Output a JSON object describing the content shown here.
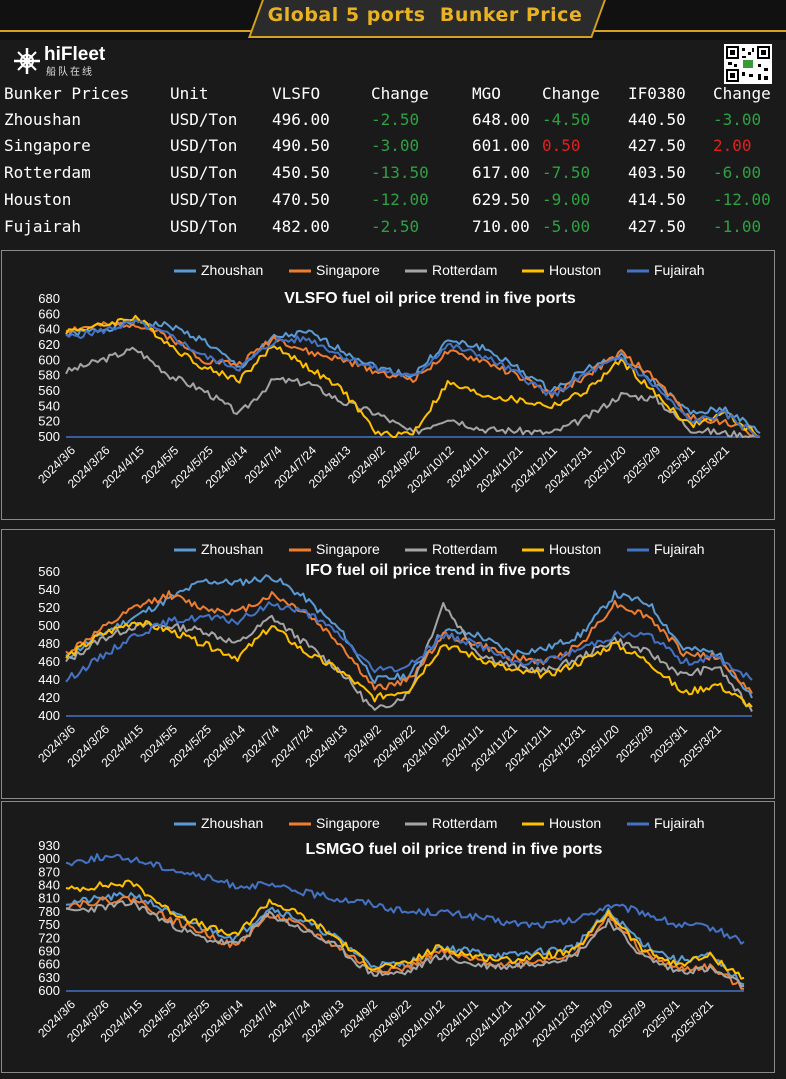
{
  "header": {
    "title": "Global 5 ports  Bunker Price"
  },
  "logo": {
    "brand": "hiFleet",
    "sub": "船队在线"
  },
  "table": {
    "headers": [
      "Bunker Prices",
      "Unit",
      "VLSFO",
      "Change",
      "MGO",
      "Change",
      "IF0380",
      "Change"
    ],
    "rows": [
      [
        "Zhoushan",
        "USD/Ton",
        "496.00",
        "-2.50",
        "648.00",
        "-4.50",
        "440.50",
        "-3.00"
      ],
      [
        "Singapore",
        "USD/Ton",
        "490.50",
        "-3.00",
        "601.00",
        "0.50",
        "427.50",
        "2.00"
      ],
      [
        "Rotterdam",
        "USD/Ton",
        "450.50",
        "-13.50",
        "617.00",
        "-7.50",
        "403.50",
        "-6.00"
      ],
      [
        "Houston",
        "USD/Ton",
        "470.50",
        "-12.00",
        "629.50",
        "-9.00",
        "414.50",
        "-12.00"
      ],
      [
        "Fujairah",
        "USD/Ton",
        "482.00",
        "-2.50",
        "710.00",
        "-5.00",
        "427.50",
        "-1.00"
      ]
    ],
    "colors": {
      "negative": "#2ea043",
      "positive": "#e02020",
      "text": "#ffffff"
    }
  },
  "chart_data": [
    {
      "type": "line",
      "title": "VLSFO fuel oil price trend in five ports",
      "ylim": [
        500,
        680
      ],
      "yticks": [
        500,
        520,
        540,
        560,
        580,
        600,
        620,
        640,
        660,
        680
      ],
      "xticks": [
        "2024/3/6",
        "2024/3/26",
        "2024/4/15",
        "2024/5/5",
        "2024/5/25",
        "2024/6/14",
        "2024/7/4",
        "2024/7/24",
        "2024/8/13",
        "2024/9/2",
        "2024/9/22",
        "2024/10/12",
        "2024/11/1",
        "2024/11/21",
        "2024/12/11",
        "2024/12/31",
        "2025/1/20",
        "2025/2/9",
        "2025/3/1",
        "2025/3/21"
      ],
      "legend_position": "top",
      "x": [
        "2024/3/6",
        "2024/3/26",
        "2024/4/15",
        "2024/5/5",
        "2024/5/25",
        "2024/6/14",
        "2024/7/4",
        "2024/7/24",
        "2024/8/13",
        "2024/9/2",
        "2024/9/22",
        "2024/10/12",
        "2024/11/1",
        "2024/11/21",
        "2024/12/11",
        "2024/12/31",
        "2025/1/20",
        "2025/2/9",
        "2025/3/1",
        "2025/3/21",
        "2025/4/3"
      ],
      "series": [
        {
          "name": "Zhoushan",
          "color": "#5b9bd5",
          "values": [
            633,
            640,
            650,
            645,
            625,
            590,
            630,
            636,
            612,
            590,
            580,
            625,
            617,
            590,
            560,
            590,
            605,
            570,
            530,
            537,
            505
          ]
        },
        {
          "name": "Singapore",
          "color": "#ed7d31",
          "values": [
            640,
            645,
            648,
            630,
            600,
            595,
            630,
            610,
            600,
            585,
            575,
            610,
            600,
            580,
            555,
            580,
            610,
            575,
            525,
            520,
            500
          ]
        },
        {
          "name": "Rotterdam",
          "color": "#a5a5a5",
          "values": [
            585,
            600,
            615,
            580,
            560,
            530,
            575,
            570,
            545,
            530,
            505,
            525,
            510,
            508,
            505,
            525,
            555,
            550,
            510,
            505,
            500
          ]
        },
        {
          "name": "Houston",
          "color": "#ffc000",
          "values": [
            638,
            645,
            657,
            620,
            590,
            575,
            620,
            590,
            560,
            503,
            505,
            570,
            555,
            548,
            540,
            560,
            600,
            555,
            515,
            530,
            500
          ]
        },
        {
          "name": "Fujairah",
          "color": "#4472c4",
          "values": [
            630,
            638,
            650,
            632,
            605,
            590,
            625,
            628,
            605,
            588,
            578,
            620,
            606,
            583,
            553,
            583,
            603,
            565,
            520,
            530,
            500
          ]
        }
      ]
    },
    {
      "type": "line",
      "title": "IFO fuel oil price trend in five ports",
      "ylim": [
        400,
        560
      ],
      "yticks": [
        400,
        420,
        440,
        460,
        480,
        500,
        520,
        540,
        560
      ],
      "xticks": [
        "2024/3/6",
        "2024/3/26",
        "2024/4/15",
        "2024/5/5",
        "2024/5/25",
        "2024/6/14",
        "2024/7/4",
        "2024/7/24",
        "2024/8/13",
        "2024/9/2",
        "2024/9/22",
        "2024/10/12",
        "2024/11/1",
        "2024/11/21",
        "2024/12/11",
        "2024/12/31",
        "2025/1/20",
        "2025/2/9",
        "2025/3/1",
        "2025/3/21"
      ],
      "legend_position": "top",
      "x": [
        "2024/3/6",
        "2024/3/26",
        "2024/4/15",
        "2024/5/5",
        "2024/5/25",
        "2024/6/14",
        "2024/7/4",
        "2024/7/24",
        "2024/8/13",
        "2024/9/2",
        "2024/9/22",
        "2024/10/12",
        "2024/11/1",
        "2024/11/21",
        "2024/12/11",
        "2024/12/31",
        "2025/1/20",
        "2025/2/9",
        "2025/3/1",
        "2025/3/21",
        "2025/4/3"
      ],
      "series": [
        {
          "name": "Zhoushan",
          "color": "#5b9bd5",
          "values": [
            465,
            490,
            510,
            530,
            550,
            548,
            555,
            530,
            495,
            440,
            445,
            495,
            490,
            470,
            475,
            490,
            535,
            525,
            475,
            470,
            420
          ]
        },
        {
          "name": "Singapore",
          "color": "#ed7d31",
          "values": [
            470,
            495,
            520,
            535,
            520,
            515,
            535,
            515,
            480,
            430,
            440,
            490,
            480,
            465,
            460,
            480,
            525,
            510,
            470,
            465,
            425
          ]
        },
        {
          "name": "Rotterdam",
          "color": "#a5a5a5",
          "values": [
            460,
            485,
            500,
            500,
            495,
            480,
            510,
            480,
            450,
            405,
            425,
            525,
            470,
            455,
            450,
            465,
            485,
            470,
            445,
            455,
            405
          ]
        },
        {
          "name": "Houston",
          "color": "#ffc000",
          "values": [
            465,
            490,
            505,
            495,
            480,
            465,
            500,
            470,
            450,
            420,
            430,
            480,
            465,
            450,
            445,
            460,
            480,
            460,
            425,
            435,
            410
          ]
        },
        {
          "name": "Fujairah",
          "color": "#4472c4",
          "values": [
            440,
            465,
            490,
            505,
            510,
            505,
            525,
            515,
            490,
            450,
            455,
            490,
            480,
            460,
            460,
            475,
            490,
            490,
            460,
            465,
            440
          ]
        }
      ]
    },
    {
      "type": "line",
      "title": "LSMGO fuel oil price trend in five ports",
      "ylim": [
        600,
        930
      ],
      "yticks": [
        600,
        630,
        660,
        690,
        720,
        750,
        780,
        810,
        840,
        870,
        900,
        930
      ],
      "xticks": [
        "2024/3/6",
        "2024/3/26",
        "2024/4/15",
        "2024/5/5",
        "2024/5/25",
        "2024/6/14",
        "2024/7/4",
        "2024/7/24",
        "2024/8/13",
        "2024/9/2",
        "2024/9/22",
        "2024/10/12",
        "2024/11/1",
        "2024/11/21",
        "2024/12/11",
        "2024/12/31",
        "2025/1/20",
        "2025/2/9",
        "2025/3/1",
        "2025/3/21"
      ],
      "legend_position": "top",
      "x": [
        "2024/3/6",
        "2024/3/26",
        "2024/4/15",
        "2024/5/5",
        "2024/5/25",
        "2024/6/14",
        "2024/7/4",
        "2024/7/24",
        "2024/8/13",
        "2024/9/2",
        "2024/9/22",
        "2024/10/12",
        "2024/11/1",
        "2024/11/21",
        "2024/12/11",
        "2024/12/31",
        "2025/1/20",
        "2025/2/9",
        "2025/3/1",
        "2025/3/21",
        "2025/4/3"
      ],
      "series": [
        {
          "name": "Zhoushan",
          "color": "#5b9bd5",
          "values": [
            800,
            810,
            820,
            780,
            745,
            720,
            790,
            760,
            720,
            660,
            660,
            700,
            690,
            680,
            690,
            700,
            780,
            710,
            670,
            680,
            615
          ]
        },
        {
          "name": "Singapore",
          "color": "#ed7d31",
          "values": [
            795,
            805,
            810,
            765,
            735,
            700,
            775,
            745,
            700,
            650,
            650,
            690,
            670,
            660,
            670,
            685,
            770,
            690,
            650,
            655,
            605
          ]
        },
        {
          "name": "Rotterdam",
          "color": "#a5a5a5",
          "values": [
            780,
            790,
            800,
            755,
            720,
            705,
            775,
            740,
            700,
            640,
            640,
            680,
            660,
            655,
            665,
            680,
            760,
            680,
            645,
            650,
            612
          ]
        },
        {
          "name": "Houston",
          "color": "#ffc000",
          "values": [
            830,
            840,
            845,
            785,
            750,
            725,
            805,
            770,
            720,
            655,
            660,
            700,
            680,
            670,
            680,
            690,
            780,
            695,
            660,
            680,
            630
          ]
        },
        {
          "name": "Fujairah",
          "color": "#4472c4",
          "values": [
            890,
            905,
            900,
            880,
            860,
            840,
            840,
            825,
            810,
            800,
            780,
            780,
            770,
            755,
            750,
            760,
            795,
            780,
            750,
            745,
            712
          ]
        }
      ]
    }
  ]
}
